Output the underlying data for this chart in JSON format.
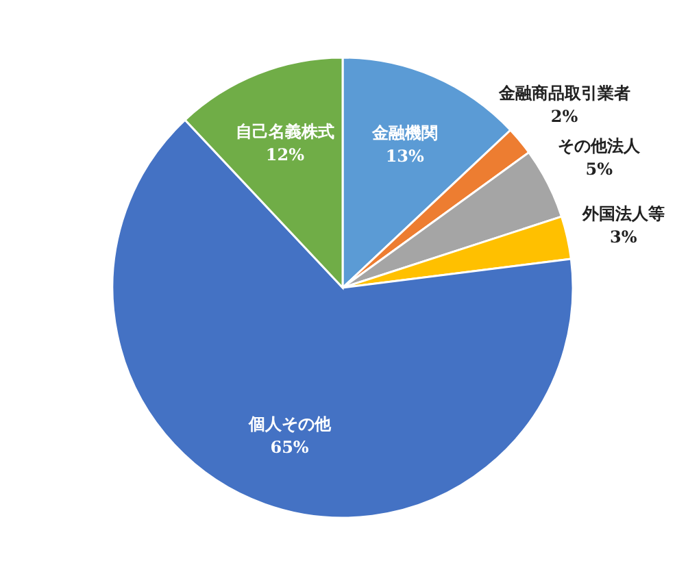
{
  "chart_data": {
    "type": "pie",
    "categories": [
      "金融機関",
      "金融商品取引業者",
      "その他法人",
      "外国法人等",
      "個人その他",
      "自己名義株式"
    ],
    "values": [
      13,
      2,
      5,
      3,
      65,
      12
    ],
    "colors": [
      "#5b9bd5",
      "#ed7d31",
      "#a5a5a5",
      "#ffc000",
      "#4472c4",
      "#70ad47"
    ],
    "value_labels": [
      "13%",
      "2%",
      "5%",
      "3%",
      "65%",
      "12%"
    ]
  }
}
